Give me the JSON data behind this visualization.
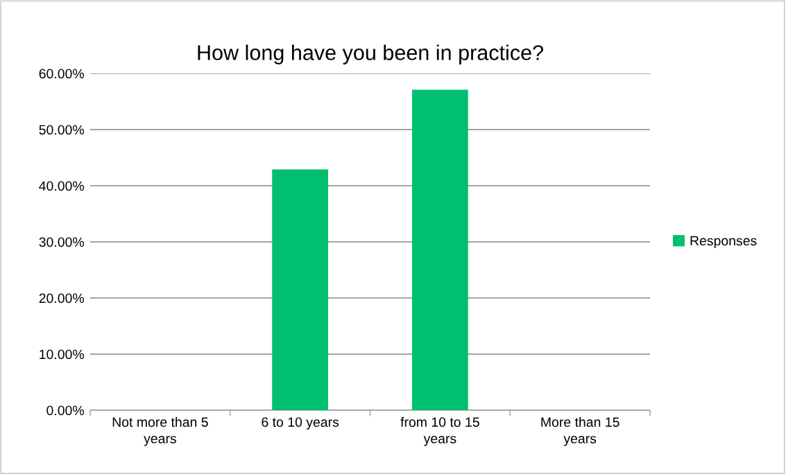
{
  "chart_data": {
    "type": "bar",
    "title": "How long have you been in practice?",
    "categories": [
      "Not more than 5 years",
      "6 to 10 years",
      "from 10 to 15 years",
      "More than 15 years"
    ],
    "series": [
      {
        "name": "Responses",
        "color": "#00bf6f",
        "values": [
          0,
          42.9,
          57.1,
          0
        ]
      }
    ],
    "ylim": [
      0,
      60
    ],
    "yticks": [
      {
        "value": 0,
        "label": "0.00%"
      },
      {
        "value": 10,
        "label": "10.00%"
      },
      {
        "value": 20,
        "label": "20.00%"
      },
      {
        "value": 30,
        "label": "30.00%"
      },
      {
        "value": 40,
        "label": "40.00%"
      },
      {
        "value": 50,
        "label": "50.00%"
      },
      {
        "value": 60,
        "label": "60.00%"
      }
    ],
    "grid": "y",
    "legend": "right"
  }
}
